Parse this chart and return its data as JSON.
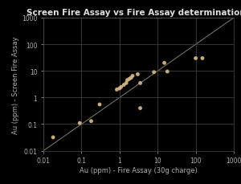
{
  "title": "Screen Fire Assay vs Fire Assay determinations",
  "xlabel": "Au (ppm) - Fire Assay (30g charge)",
  "ylabel": "Au (ppm) - Screen Fire Assay",
  "xlim": [
    0.01,
    1000
  ],
  "ylim": [
    0.01,
    1000
  ],
  "xticks": [
    0.01,
    0.1,
    1,
    10,
    100,
    1000
  ],
  "yticks": [
    0.01,
    0.1,
    1,
    10,
    100,
    1000
  ],
  "background_color": "#000000",
  "plot_bg_color": "#000000",
  "grid_color": "#4a4a4a",
  "tick_color": "#b0b0b0",
  "title_color": "#e0e0e0",
  "label_color": "#b0b0b0",
  "marker_color": "#d4b483",
  "line_color": "#808060",
  "data_x": [
    0.018,
    0.09,
    0.18,
    0.3,
    0.85,
    1.0,
    1.1,
    1.3,
    1.5,
    1.6,
    1.8,
    2.0,
    2.2,
    3.0,
    3.5,
    3.5,
    8.0,
    15,
    18,
    100,
    150
  ],
  "data_y": [
    0.032,
    0.11,
    0.13,
    0.55,
    2.0,
    2.2,
    2.5,
    3.0,
    3.5,
    4.5,
    5.0,
    5.5,
    6.5,
    7.5,
    3.5,
    0.4,
    9.0,
    20,
    9.5,
    30,
    30
  ]
}
